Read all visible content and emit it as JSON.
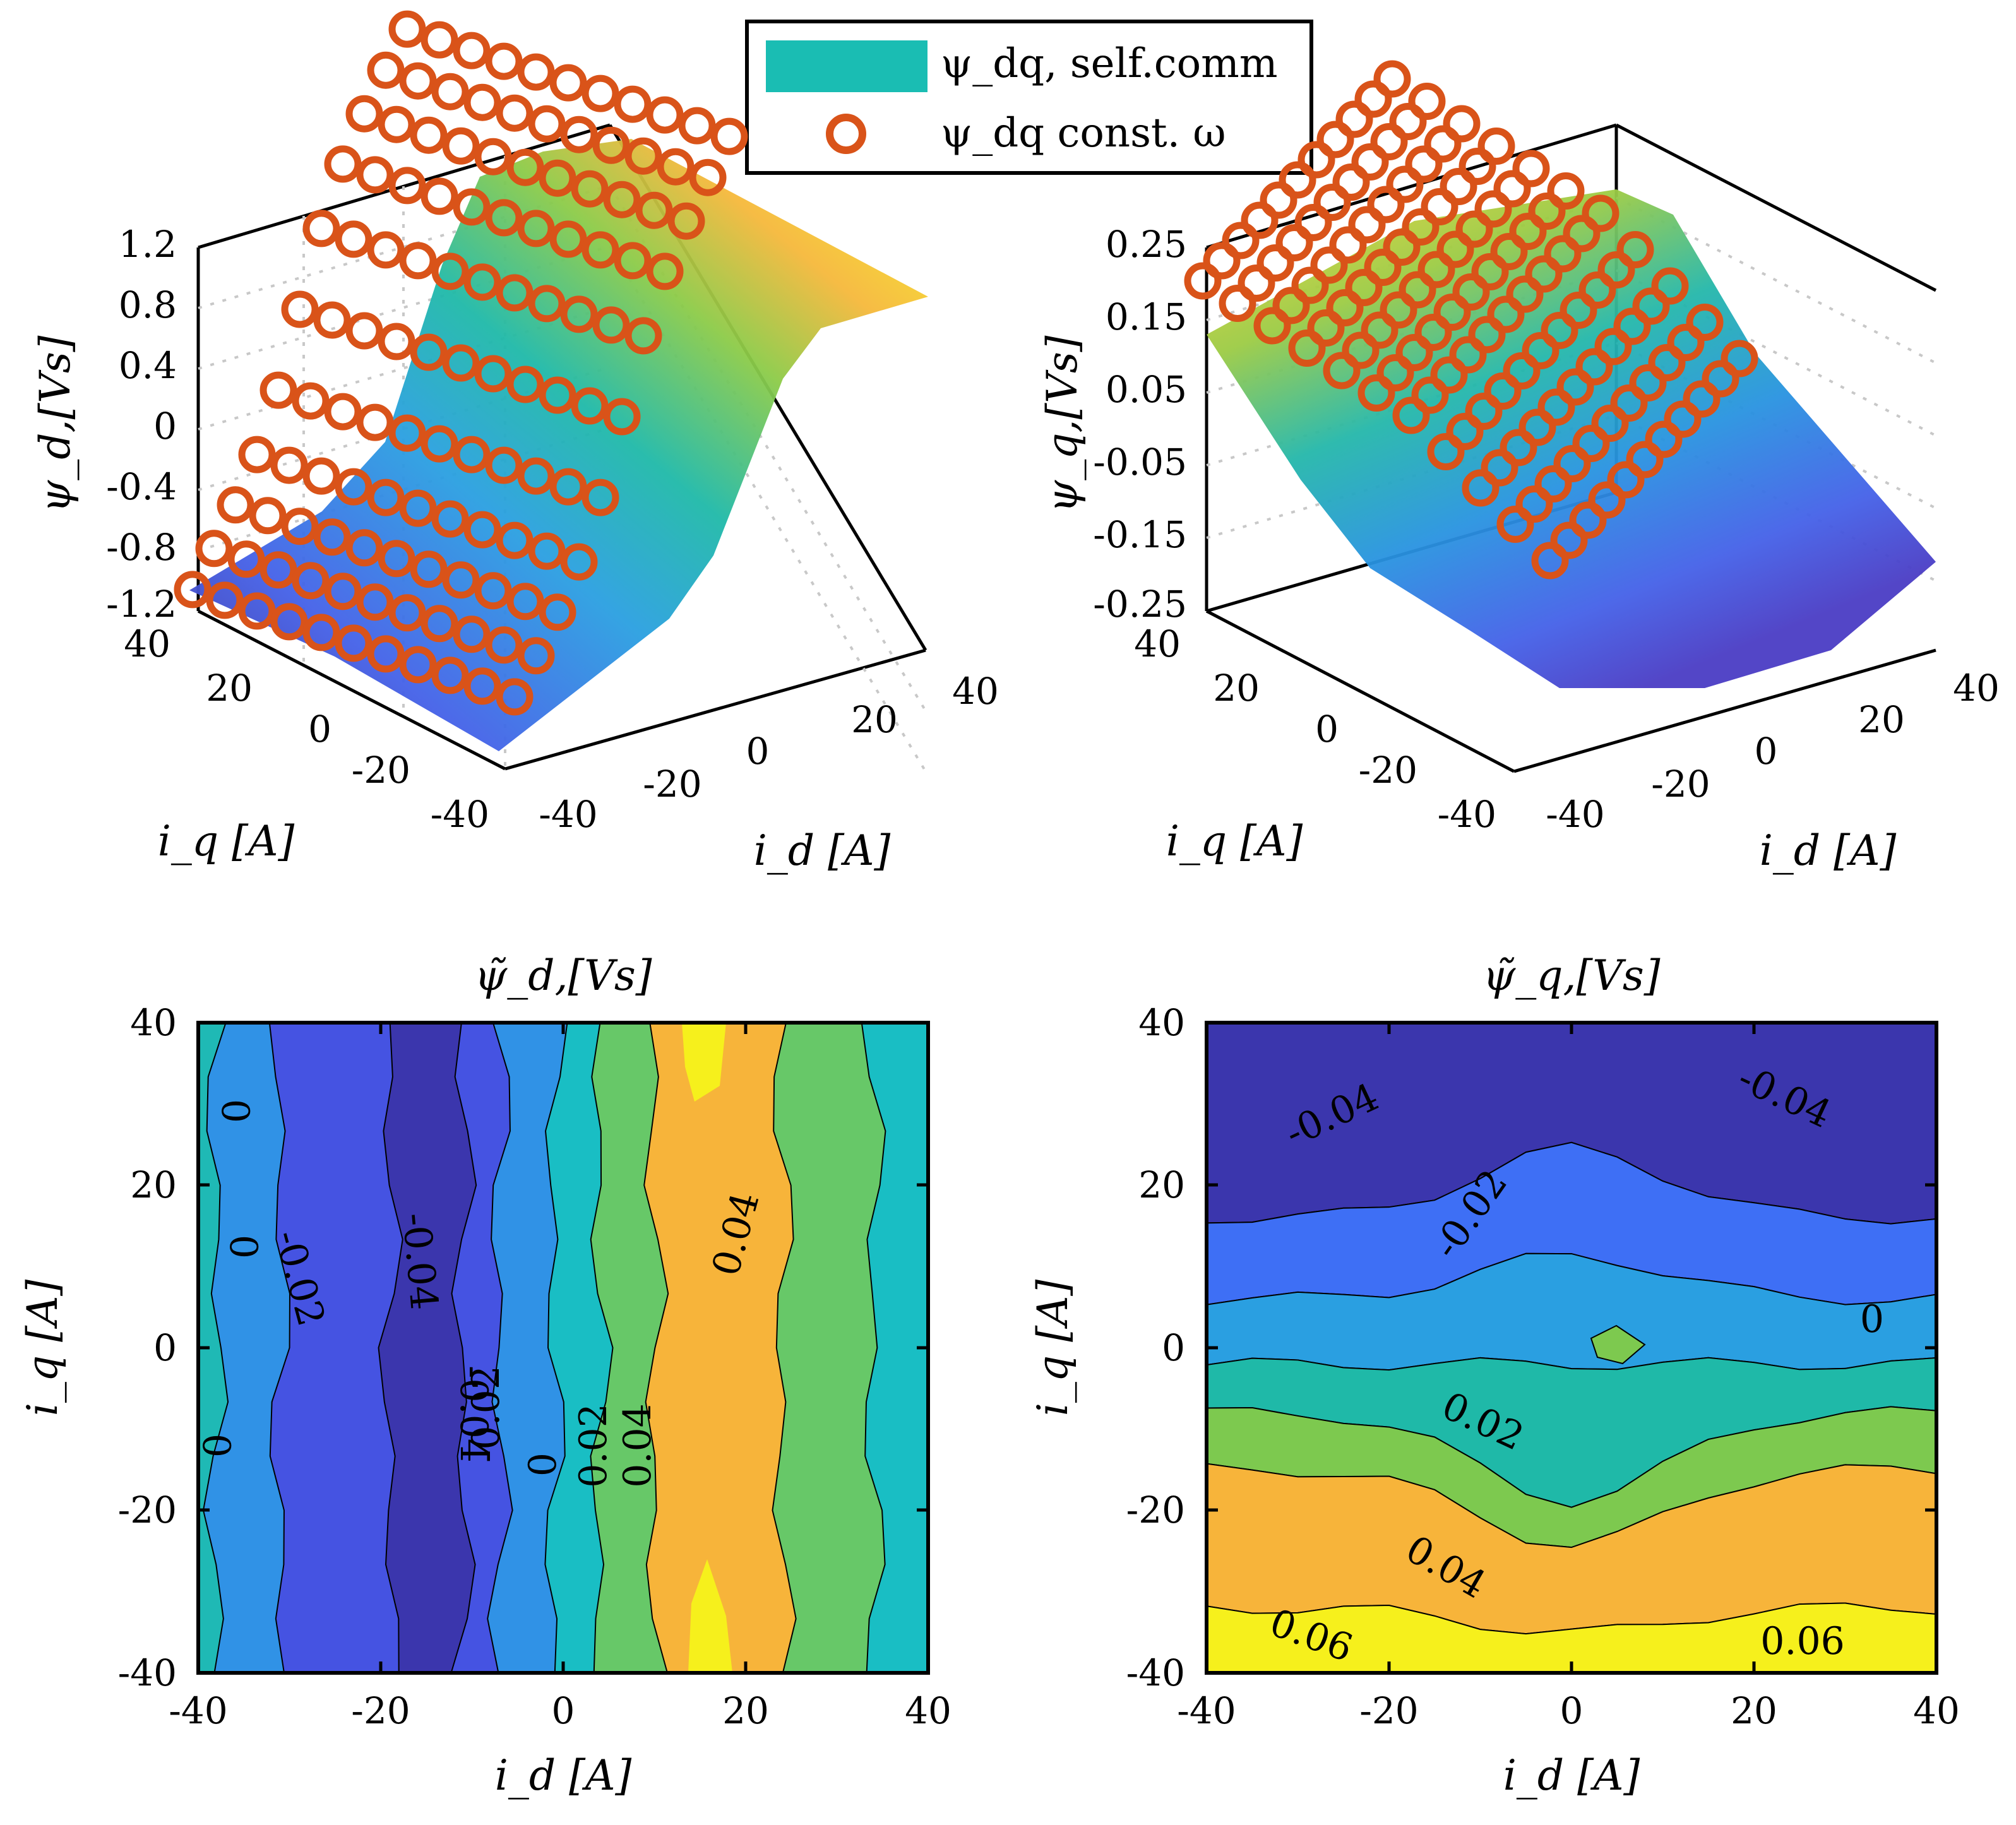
{
  "legend": {
    "entries": [
      {
        "label": "ψ_dq, self.comm",
        "color": "#1abdb3",
        "marker": "patch"
      },
      {
        "label": "ψ_dq const. ω",
        "color": "#d95319",
        "marker": "circle"
      }
    ]
  },
  "chart_data": [
    {
      "type": "surface3d",
      "panel": "top-left",
      "zlabel": "ψ_d,[Vs]",
      "xlabel": "i_d [A]",
      "ylabel": "i_q [A]",
      "zticks": [
        "1.2",
        "0.8",
        "0.4",
        "0",
        "-0.4",
        "-0.8",
        "-1.2"
      ],
      "xticks": [
        "-40",
        "-20",
        "0",
        "20",
        "40"
      ],
      "yticks": [
        "40",
        "20",
        "0",
        "-20",
        "-40"
      ],
      "zlim": [
        -1.2,
        1.2
      ],
      "x_range": [
        -40,
        40
      ],
      "y_range": [
        -40,
        40
      ],
      "grid": true,
      "description_values": {
        "z_at_id_-40": -1.2,
        "z_at_id_0": 0.0,
        "z_at_id_40": 0.95
      }
    },
    {
      "type": "surface3d",
      "panel": "top-right",
      "zlabel": "ψ_q,[Vs]",
      "xlabel": "i_d [A]",
      "ylabel": "i_q [A]",
      "zticks": [
        "0.25",
        "0.15",
        "0.05",
        "-0.05",
        "-0.15",
        "-0.25"
      ],
      "xticks": [
        "-40",
        "-20",
        "0",
        "20",
        "40"
      ],
      "yticks": [
        "40",
        "20",
        "0",
        "-20",
        "-40"
      ],
      "zlim": [
        -0.25,
        0.25
      ],
      "x_range": [
        -40,
        40
      ],
      "y_range": [
        -40,
        40
      ],
      "grid": true
    },
    {
      "type": "contour",
      "panel": "bottom-left",
      "title": "ψ̃_d,[Vs]",
      "xlabel": "i_d [A]",
      "ylabel": "i_q [A]",
      "xticks": [
        "-40",
        "-20",
        "0",
        "20",
        "40"
      ],
      "yticks": [
        "40",
        "20",
        "0",
        "-20",
        "-40"
      ],
      "xlim": [
        -40,
        40
      ],
      "ylim": [
        -40,
        40
      ],
      "levels": [
        -0.04,
        -0.02,
        0,
        0.02,
        0.04
      ],
      "contour_labels": [
        "0",
        "0",
        "0",
        "-0.02",
        "-0.04",
        "-0.02",
        "-0.04",
        "0",
        "0.02",
        "0.04",
        "0.04"
      ],
      "bands_by_id": [
        {
          "id_from": -40,
          "id_to": -38,
          "color": "#1fb9b5"
        },
        {
          "id_from": -38,
          "id_to": -31,
          "color": "#3092e6"
        },
        {
          "id_from": -31,
          "id_to": -19,
          "color": "#4553e2"
        },
        {
          "id_from": -19,
          "id_to": -11,
          "color": "#3b36ad"
        },
        {
          "id_from": -11,
          "id_to": -7,
          "color": "#4553e2"
        },
        {
          "id_from": -7,
          "id_to": -1,
          "color": "#3092e6"
        },
        {
          "id_from": -1,
          "id_to": 4,
          "color": "#19bec4"
        },
        {
          "id_from": 4,
          "id_to": 10,
          "color": "#67c868"
        },
        {
          "id_from": 10,
          "id_to": 24,
          "color": "#f7b43a"
        },
        {
          "id_from": 24,
          "id_to": 34,
          "color": "#67c868"
        },
        {
          "id_from": 34,
          "id_to": 40,
          "color": "#19bec4"
        }
      ]
    },
    {
      "type": "contour",
      "panel": "bottom-right",
      "title": "ψ̃_q,[Vs]",
      "xlabel": "i_d [A]",
      "ylabel": "i_q [A]",
      "xticks": [
        "-40",
        "-20",
        "0",
        "20",
        "40"
      ],
      "yticks": [
        "40",
        "20",
        "0",
        "-20",
        "-40"
      ],
      "xlim": [
        -40,
        40
      ],
      "ylim": [
        -40,
        40
      ],
      "levels": [
        -0.04,
        -0.02,
        0,
        0.02,
        0.04,
        0.06
      ],
      "contour_labels": [
        "-0.04",
        "-0.04",
        "-0.02",
        "0",
        "0.02",
        "0.04",
        "0.06",
        "0.06"
      ],
      "bands_by_iq": [
        {
          "iq_from": 40,
          "iq_to": 16,
          "color": "#3b36ad"
        },
        {
          "iq_from": 16,
          "iq_to": 6,
          "color": "#3e6ff5"
        },
        {
          "iq_from": 6,
          "iq_to": -2,
          "color": "#2a9fe1"
        },
        {
          "iq_from": -2,
          "iq_to": -8,
          "color": "#1fb9a8"
        },
        {
          "iq_from": -8,
          "iq_to": -15,
          "color": "#7dc94f"
        },
        {
          "iq_from": -15,
          "iq_to": -32,
          "color": "#f7b43a"
        },
        {
          "iq_from": -32,
          "iq_to": -40,
          "color": "#f6f01c"
        }
      ]
    }
  ],
  "labels": {
    "tl_zlabel": "ψ_d,[Vs]",
    "tr_zlabel": "ψ_q,[Vs]",
    "bl_title": "ψ̃_d,[Vs]",
    "br_title": "ψ̃_q,[Vs]",
    "id_label": "i_d [A]",
    "iq_label": "i_q [A]"
  }
}
